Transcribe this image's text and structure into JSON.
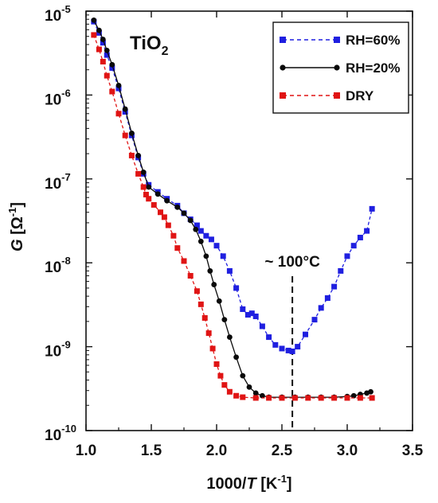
{
  "chart_data": {
    "type": "scatter",
    "title_main": "TiO",
    "title_sub": "2",
    "xlabel_pre": "1000/",
    "xlabel_var": "T",
    "xlabel_unit_open": " [K",
    "xlabel_unit_exp": "-1",
    "xlabel_unit_close": "]",
    "ylabel_var": "G",
    "ylabel_unit_open": " [Ω",
    "ylabel_unit_exp": "-1",
    "ylabel_unit_close": "]",
    "xlim": [
      1.0,
      3.5
    ],
    "ylim_log10": [
      -10,
      -5
    ],
    "yscale": "log",
    "x_ticks": [
      1.0,
      1.5,
      2.0,
      2.5,
      3.0,
      3.5
    ],
    "x_tick_labels": [
      "1.0",
      "1.5",
      "2.0",
      "2.5",
      "3.0",
      "3.5"
    ],
    "y_tick_base": "10",
    "y_tick_exponents": [
      "-5",
      "-6",
      "-7",
      "-8",
      "-9",
      "-10"
    ],
    "legend_position": "top-right",
    "annotation": {
      "text": "~ 100°C",
      "x": 2.58
    },
    "series": [
      {
        "name": "RH=60%",
        "color": "#1f1fe0",
        "marker": "square",
        "line": "dashed",
        "points": [
          [
            1.06,
            7.5e-06
          ],
          [
            1.1,
            5.5e-06
          ],
          [
            1.13,
            4.2e-06
          ],
          [
            1.16,
            3e-06
          ],
          [
            1.2,
            2.1e-06
          ],
          [
            1.25,
            1.2e-06
          ],
          [
            1.3,
            6.3e-07
          ],
          [
            1.35,
            3.3e-07
          ],
          [
            1.4,
            1.8e-07
          ],
          [
            1.44,
            1.15e-07
          ],
          [
            1.48,
            8.5e-08
          ],
          [
            1.55,
            7e-08
          ],
          [
            1.62,
            5.8e-08
          ],
          [
            1.7,
            4.8e-08
          ],
          [
            1.75,
            3.9e-08
          ],
          [
            1.8,
            3.3e-08
          ],
          [
            1.85,
            2.8e-08
          ],
          [
            1.88,
            2.4e-08
          ],
          [
            1.92,
            2.1e-08
          ],
          [
            1.96,
            1.9e-08
          ],
          [
            2.0,
            1.6e-08
          ],
          [
            2.05,
            1.2e-08
          ],
          [
            2.1,
            8e-09
          ],
          [
            2.15,
            5e-09
          ],
          [
            2.2,
            2.8e-09
          ],
          [
            2.24,
            2.4e-09
          ],
          [
            2.27,
            2.5e-09
          ],
          [
            2.3,
            2.3e-09
          ],
          [
            2.35,
            1.75e-09
          ],
          [
            2.4,
            1.3e-09
          ],
          [
            2.45,
            1.05e-09
          ],
          [
            2.5,
            9.5e-10
          ],
          [
            2.55,
            9e-10
          ],
          [
            2.58,
            8.8e-10
          ],
          [
            2.62,
            1e-09
          ],
          [
            2.68,
            1.4e-09
          ],
          [
            2.75,
            2.1e-09
          ],
          [
            2.8,
            2.9e-09
          ],
          [
            2.85,
            3.8e-09
          ],
          [
            2.9,
            5.2e-09
          ],
          [
            2.95,
            8e-09
          ],
          [
            3.0,
            1.2e-08
          ],
          [
            3.05,
            1.6e-08
          ],
          [
            3.1,
            2e-08
          ],
          [
            3.15,
            2.4e-08
          ],
          [
            3.19,
            4.4e-08
          ]
        ]
      },
      {
        "name": "RH=20%",
        "color": "#0a0a0a",
        "marker": "circle",
        "line": "solid",
        "points": [
          [
            1.06,
            7.8e-06
          ],
          [
            1.1,
            5.9e-06
          ],
          [
            1.13,
            4.6e-06
          ],
          [
            1.16,
            3.4e-06
          ],
          [
            1.2,
            2.3e-06
          ],
          [
            1.25,
            1.3e-06
          ],
          [
            1.3,
            6.8e-07
          ],
          [
            1.35,
            3.5e-07
          ],
          [
            1.4,
            1.9e-07
          ],
          [
            1.44,
            1.2e-07
          ],
          [
            1.48,
            8e-08
          ],
          [
            1.55,
            6.6e-08
          ],
          [
            1.62,
            5.5e-08
          ],
          [
            1.7,
            4.6e-08
          ],
          [
            1.75,
            3.9e-08
          ],
          [
            1.8,
            3.2e-08
          ],
          [
            1.84,
            2.5e-08
          ],
          [
            1.88,
            1.8e-08
          ],
          [
            1.92,
            1.2e-08
          ],
          [
            1.95,
            8e-09
          ],
          [
            1.98,
            5.5e-09
          ],
          [
            2.02,
            3.5e-09
          ],
          [
            2.06,
            2.1e-09
          ],
          [
            2.1,
            1.3e-09
          ],
          [
            2.15,
            7.5e-10
          ],
          [
            2.2,
            4.5e-10
          ],
          [
            2.25,
            3.3e-10
          ],
          [
            2.3,
            2.8e-10
          ],
          [
            2.35,
            2.6e-10
          ],
          [
            2.4,
            2.5e-10
          ],
          [
            2.5,
            2.5e-10
          ],
          [
            2.6,
            2.5e-10
          ],
          [
            2.7,
            2.5e-10
          ],
          [
            2.8,
            2.5e-10
          ],
          [
            2.9,
            2.5e-10
          ],
          [
            3.0,
            2.55e-10
          ],
          [
            3.05,
            2.6e-10
          ],
          [
            3.1,
            2.7e-10
          ],
          [
            3.15,
            2.8e-10
          ],
          [
            3.18,
            2.9e-10
          ]
        ]
      },
      {
        "name": "DRY",
        "color": "#e01414",
        "marker": "square",
        "line": "dashed",
        "points": [
          [
            1.06,
            5.2e-06
          ],
          [
            1.1,
            3.5e-06
          ],
          [
            1.13,
            2.5e-06
          ],
          [
            1.16,
            1.7e-06
          ],
          [
            1.2,
            1.1e-06
          ],
          [
            1.25,
            6e-07
          ],
          [
            1.3,
            3.3e-07
          ],
          [
            1.35,
            1.9e-07
          ],
          [
            1.4,
            1.15e-07
          ],
          [
            1.44,
            8e-08
          ],
          [
            1.46,
            6.5e-08
          ],
          [
            1.48,
            5.8e-08
          ],
          [
            1.52,
            4.9e-08
          ],
          [
            1.57,
            4e-08
          ],
          [
            1.6,
            3.5e-08
          ],
          [
            1.63,
            2.8e-08
          ],
          [
            1.67,
            2.1e-08
          ],
          [
            1.7,
            1.5e-08
          ],
          [
            1.75,
            1.05e-08
          ],
          [
            1.8,
            7e-09
          ],
          [
            1.85,
            4.6e-09
          ],
          [
            1.88,
            3.2e-09
          ],
          [
            1.91,
            2.2e-09
          ],
          [
            1.94,
            1.45e-09
          ],
          [
            1.97,
            9.5e-10
          ],
          [
            2.0,
            6.2e-10
          ],
          [
            2.03,
            4.5e-10
          ],
          [
            2.06,
            3.5e-10
          ],
          [
            2.1,
            2.9e-10
          ],
          [
            2.15,
            2.6e-10
          ],
          [
            2.2,
            2.5e-10
          ],
          [
            2.3,
            2.45e-10
          ],
          [
            2.4,
            2.45e-10
          ],
          [
            2.5,
            2.45e-10
          ],
          [
            2.6,
            2.45e-10
          ],
          [
            2.7,
            2.45e-10
          ],
          [
            2.8,
            2.45e-10
          ],
          [
            2.9,
            2.45e-10
          ],
          [
            3.0,
            2.45e-10
          ],
          [
            3.1,
            2.45e-10
          ],
          [
            3.19,
            2.45e-10
          ]
        ]
      }
    ]
  }
}
